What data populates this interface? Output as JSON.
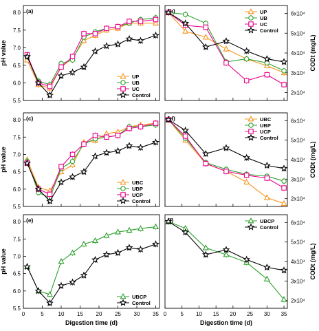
{
  "chart_data": [
    {
      "type": "line",
      "panel_label": "(a)",
      "ylabel": "pH value",
      "xlabel": "",
      "side": "left",
      "x_ticks": [
        0,
        5,
        10,
        15,
        20,
        25,
        30,
        35
      ],
      "x_tick_labels": [
        "",
        "",
        "",
        "",
        "",
        "",
        "",
        ""
      ],
      "y_ticks": [
        5.5,
        6.0,
        6.5,
        7.0,
        7.5,
        8.0
      ],
      "y_tick_labels": [
        "5.5",
        "6.0",
        "6.5",
        "7.0",
        "7.5",
        "8.0"
      ],
      "xlim": [
        0,
        36
      ],
      "ylim": [
        5.5,
        8.2
      ],
      "legend_position": "bottom-right",
      "series": [
        {
          "name": "UP",
          "color": "#f7941d",
          "marker": "triangle",
          "x": [
            1,
            4,
            7,
            10,
            13,
            16,
            19,
            22,
            25,
            28,
            31,
            35
          ],
          "y": [
            6.65,
            5.95,
            5.85,
            6.45,
            6.7,
            7.2,
            7.35,
            7.5,
            7.55,
            7.7,
            7.7,
            7.7
          ]
        },
        {
          "name": "UB",
          "color": "#2ca02c",
          "marker": "circle",
          "x": [
            1,
            4,
            7,
            10,
            13,
            16,
            19,
            22,
            25,
            28,
            31,
            35
          ],
          "y": [
            6.75,
            6.05,
            5.95,
            6.55,
            6.65,
            7.3,
            7.45,
            7.55,
            7.6,
            7.7,
            7.8,
            7.85
          ]
        },
        {
          "name": "UC",
          "color": "#ec008c",
          "marker": "square",
          "x": [
            1,
            4,
            7,
            10,
            13,
            16,
            19,
            22,
            25,
            28,
            31,
            35
          ],
          "y": [
            6.8,
            6.0,
            5.9,
            6.45,
            6.75,
            7.4,
            7.4,
            7.55,
            7.6,
            7.75,
            7.75,
            7.8
          ]
        },
        {
          "name": "Control",
          "color": "#000000",
          "marker": "star",
          "x": [
            1,
            4,
            7,
            10,
            13,
            16,
            19,
            22,
            25,
            28,
            31,
            35
          ],
          "y": [
            6.75,
            6.0,
            5.65,
            6.2,
            6.3,
            6.45,
            6.9,
            7.05,
            7.1,
            7.25,
            7.2,
            7.35
          ]
        }
      ]
    },
    {
      "type": "line",
      "panel_label": "(b)",
      "ylabel": "CODt (mg/L)",
      "xlabel": "",
      "side": "right",
      "x_ticks": [
        0,
        5,
        10,
        15,
        20,
        25,
        30,
        35
      ],
      "x_tick_labels": [
        "",
        "",
        "",
        "",
        "",
        "",
        "",
        ""
      ],
      "y_ticks": [
        20000,
        30000,
        40000,
        50000,
        60000
      ],
      "y_tick_labels": [
        "2x10⁴",
        "3x10⁴",
        "4x10⁴",
        "5x10⁴",
        "6x10⁴"
      ],
      "xlim": [
        0,
        36
      ],
      "ylim": [
        16000,
        64000
      ],
      "legend_position": "top-right",
      "series": [
        {
          "name": "UP",
          "color": "#f7941d",
          "marker": "triangle",
          "x": [
            1,
            6,
            12,
            18,
            24,
            30,
            35
          ],
          "y": [
            60500,
            51000,
            48000,
            42000,
            37000,
            33500,
            30000
          ]
        },
        {
          "name": "UB",
          "color": "#2ca02c",
          "marker": "circle",
          "x": [
            1,
            6,
            12,
            18,
            24,
            30,
            35
          ],
          "y": [
            60500,
            59500,
            55000,
            35500,
            37000,
            35000,
            31000
          ]
        },
        {
          "name": "UC",
          "color": "#ec008c",
          "marker": "square",
          "x": [
            1,
            6,
            12,
            18,
            24,
            30,
            35
          ],
          "y": [
            60500,
            54000,
            53000,
            35000,
            26000,
            29000,
            24000
          ]
        },
        {
          "name": "Control",
          "color": "#000000",
          "marker": "star",
          "x": [
            1,
            6,
            12,
            18,
            24,
            30,
            35
          ],
          "y": [
            60500,
            55000,
            43000,
            46000,
            41000,
            37000,
            35500
          ]
        }
      ]
    },
    {
      "type": "line",
      "panel_label": "(c)",
      "ylabel": "pH value",
      "xlabel": "",
      "side": "left",
      "x_ticks": [
        0,
        5,
        10,
        15,
        20,
        25,
        30,
        35
      ],
      "x_tick_labels": [
        "",
        "",
        "",
        "",
        "",
        "",
        "",
        ""
      ],
      "y_ticks": [
        5.5,
        6.0,
        6.5,
        7.0,
        7.5,
        8.0
      ],
      "y_tick_labels": [
        "5.5",
        "6.0",
        "6.5",
        "7.0",
        "7.5",
        "8.0"
      ],
      "xlim": [
        0,
        36
      ],
      "ylim": [
        5.5,
        8.2
      ],
      "legend_position": "bottom-right",
      "series": [
        {
          "name": "UBC",
          "color": "#f7941d",
          "marker": "triangle",
          "x": [
            1,
            4,
            7,
            10,
            13,
            16,
            19,
            22,
            25,
            28,
            31,
            35
          ],
          "y": [
            6.85,
            6.05,
            5.95,
            6.5,
            6.7,
            7.35,
            7.4,
            7.6,
            7.65,
            7.8,
            7.85,
            7.9
          ]
        },
        {
          "name": "UBP",
          "color": "#2ca02c",
          "marker": "circle",
          "x": [
            1,
            4,
            7,
            10,
            13,
            16,
            19,
            22,
            25,
            28,
            31,
            35
          ],
          "y": [
            6.8,
            5.9,
            5.75,
            6.6,
            6.8,
            7.3,
            7.45,
            7.5,
            7.55,
            7.8,
            7.8,
            7.85
          ]
        },
        {
          "name": "UCP",
          "color": "#ec008c",
          "marker": "square",
          "x": [
            1,
            4,
            7,
            10,
            13,
            16,
            19,
            22,
            25,
            28,
            31,
            35
          ],
          "y": [
            6.75,
            6.0,
            5.85,
            6.65,
            7.0,
            7.3,
            7.55,
            7.5,
            7.55,
            7.75,
            7.8,
            7.9
          ]
        },
        {
          "name": "Control",
          "color": "#000000",
          "marker": "star",
          "x": [
            1,
            4,
            7,
            10,
            13,
            16,
            19,
            22,
            25,
            28,
            31,
            35
          ],
          "y": [
            6.75,
            6.0,
            5.65,
            6.2,
            6.35,
            6.5,
            6.95,
            7.05,
            7.1,
            7.25,
            7.2,
            7.35
          ]
        }
      ]
    },
    {
      "type": "line",
      "panel_label": "(d)",
      "ylabel": "CODt (mg/L)",
      "xlabel": "",
      "side": "right",
      "x_ticks": [
        0,
        5,
        10,
        15,
        20,
        25,
        30,
        35
      ],
      "x_tick_labels": [
        "",
        "",
        "",
        "",
        "",
        "",
        "",
        ""
      ],
      "y_ticks": [
        20000,
        30000,
        40000,
        50000,
        60000
      ],
      "y_tick_labels": [
        "2x10⁴",
        "3x10⁴",
        "4x10⁴",
        "5x10⁴",
        "6x10⁴"
      ],
      "xlim": [
        0,
        36
      ],
      "ylim": [
        16000,
        64000
      ],
      "legend_position": "top-right",
      "series": [
        {
          "name": "UBC",
          "color": "#f7941d",
          "marker": "triangle",
          "x": [
            1,
            6,
            12,
            18,
            24,
            30,
            35
          ],
          "y": [
            60500,
            50000,
            38000,
            34000,
            28500,
            20500,
            17500
          ]
        },
        {
          "name": "UBP",
          "color": "#2ca02c",
          "marker": "circle",
          "x": [
            1,
            6,
            12,
            18,
            24,
            30,
            35
          ],
          "y": [
            60500,
            51000,
            38500,
            35000,
            32500,
            31500,
            29000
          ]
        },
        {
          "name": "UCP",
          "color": "#ec008c",
          "marker": "square",
          "x": [
            1,
            6,
            12,
            18,
            24,
            30,
            35
          ],
          "y": [
            60500,
            52000,
            38000,
            34000,
            32000,
            30500,
            25500
          ]
        },
        {
          "name": "Control",
          "color": "#000000",
          "marker": "star",
          "x": [
            1,
            6,
            12,
            18,
            24,
            30,
            35
          ],
          "y": [
            60500,
            55000,
            43000,
            46000,
            41000,
            37000,
            35500
          ]
        }
      ]
    },
    {
      "type": "line",
      "panel_label": "(e)",
      "ylabel": "pH value",
      "xlabel": "Digestion time (d)",
      "side": "left",
      "x_ticks": [
        0,
        5,
        10,
        15,
        20,
        25,
        30,
        35
      ],
      "x_tick_labels": [
        "0",
        "5",
        "10",
        "15",
        "20",
        "25",
        "30",
        "35"
      ],
      "y_ticks": [
        5.5,
        6.0,
        6.5,
        7.0,
        7.5,
        8.0
      ],
      "y_tick_labels": [
        "5.5",
        "6.0",
        "6.5",
        "7.0",
        "7.5",
        "8.0"
      ],
      "xlim": [
        0,
        36
      ],
      "ylim": [
        5.5,
        8.2
      ],
      "legend_position": "bottom-right",
      "series": [
        {
          "name": "UBCP",
          "color": "#2ca02c",
          "marker": "triangle",
          "x": [
            1,
            4,
            7,
            10,
            13,
            16,
            19,
            22,
            25,
            28,
            31,
            35
          ],
          "y": [
            6.7,
            6.0,
            5.9,
            6.85,
            7.1,
            7.35,
            7.45,
            7.6,
            7.7,
            7.75,
            7.8,
            7.85
          ]
        },
        {
          "name": "Control",
          "color": "#000000",
          "marker": "star",
          "x": [
            1,
            4,
            7,
            10,
            13,
            16,
            19,
            22,
            25,
            28,
            31,
            35
          ],
          "y": [
            6.7,
            6.0,
            5.65,
            6.15,
            6.25,
            6.45,
            6.9,
            7.05,
            7.1,
            7.25,
            7.2,
            7.35
          ]
        }
      ]
    },
    {
      "type": "line",
      "panel_label": "(f)",
      "ylabel": "CODt (mg/L)",
      "xlabel": "Digestion time (d)",
      "side": "right",
      "x_ticks": [
        0,
        5,
        10,
        15,
        20,
        25,
        30,
        35
      ],
      "x_tick_labels": [
        "0",
        "5",
        "10",
        "15",
        "20",
        "25",
        "30",
        "35"
      ],
      "y_ticks": [
        20000,
        30000,
        40000,
        50000,
        60000
      ],
      "y_tick_labels": [
        "2x10⁴",
        "3x10⁴",
        "4x10⁴",
        "5x10⁴",
        "6x10⁴"
      ],
      "xlim": [
        0,
        36
      ],
      "ylim": [
        16000,
        64000
      ],
      "legend_position": "top-right",
      "series": [
        {
          "name": "UBCP",
          "color": "#2ca02c",
          "marker": "triangle",
          "x": [
            1,
            6,
            12,
            18,
            24,
            30,
            35
          ],
          "y": [
            60500,
            57000,
            47000,
            43500,
            39500,
            31000,
            20500
          ]
        },
        {
          "name": "Control",
          "color": "#000000",
          "marker": "star",
          "x": [
            1,
            6,
            12,
            18,
            24,
            30,
            35
          ],
          "y": [
            60500,
            55000,
            43500,
            46000,
            41000,
            37000,
            35500
          ]
        }
      ]
    }
  ]
}
